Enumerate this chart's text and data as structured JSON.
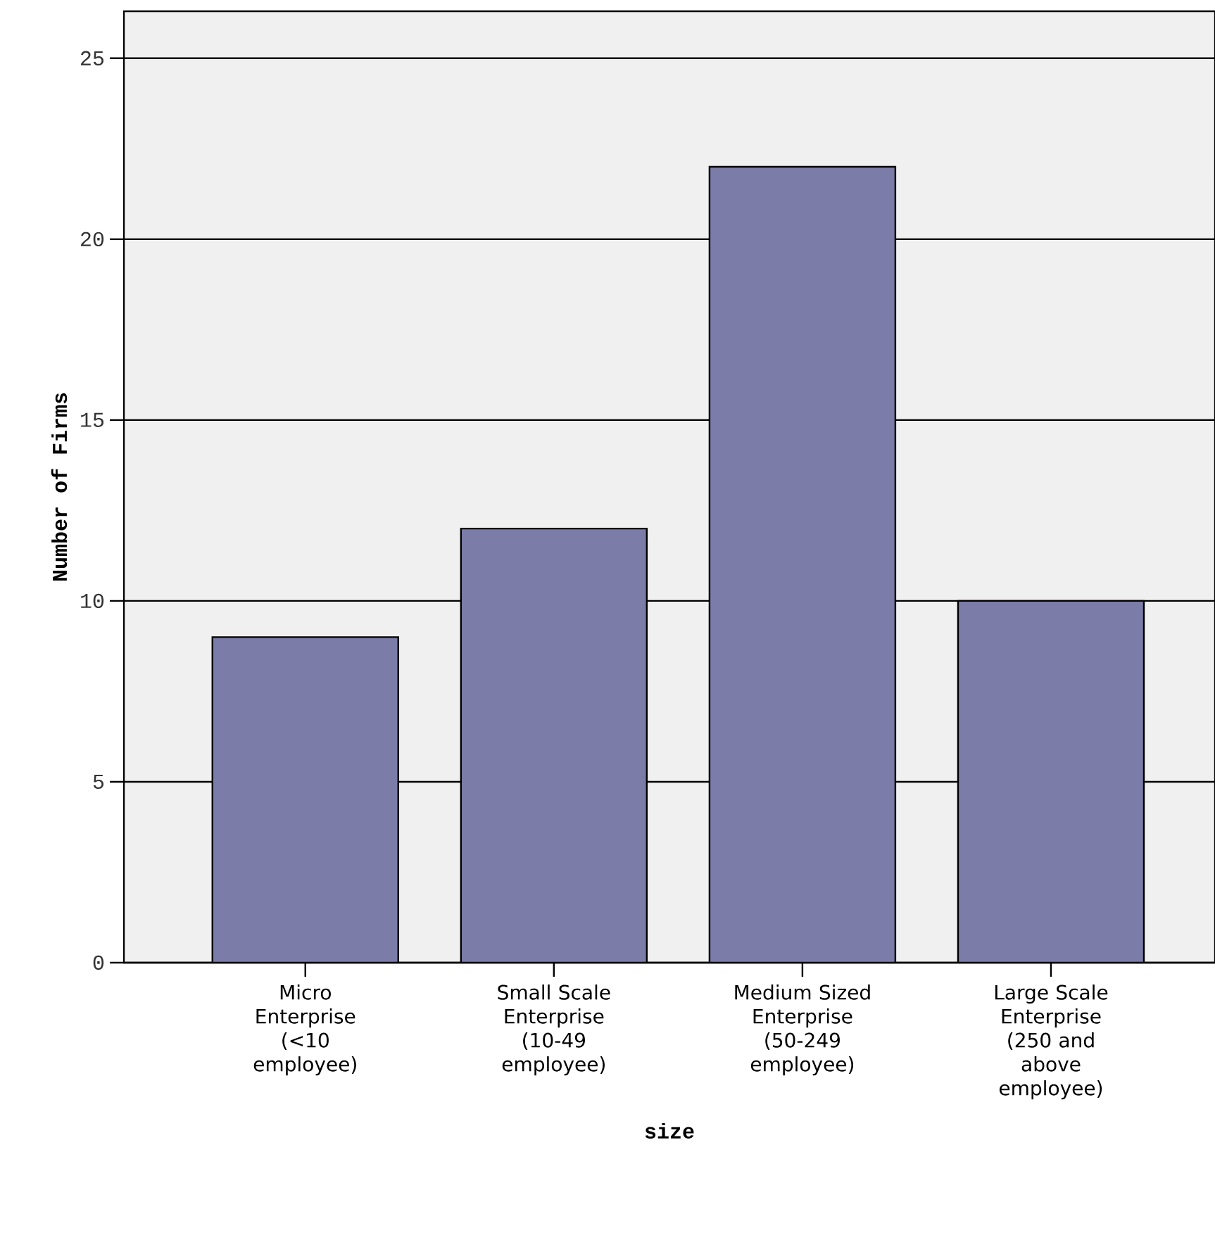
{
  "chart_data": {
    "type": "bar",
    "xlabel": "size",
    "ylabel": "Number of Firms",
    "categories": [
      "Micro Enterprise (<10 employee)",
      "Small Scale Enterprise (10-49 employee)",
      "Medium Sized Enterprise (50-249 employee)",
      "Large Scale Enterprise (250 and above employee)"
    ],
    "values": [
      9,
      12,
      22,
      10
    ],
    "color": "#7b7ca8",
    "ylim": [
      0,
      26.3
    ],
    "yticks": [
      0,
      5,
      10,
      15,
      20,
      25
    ],
    "grid": "y"
  }
}
